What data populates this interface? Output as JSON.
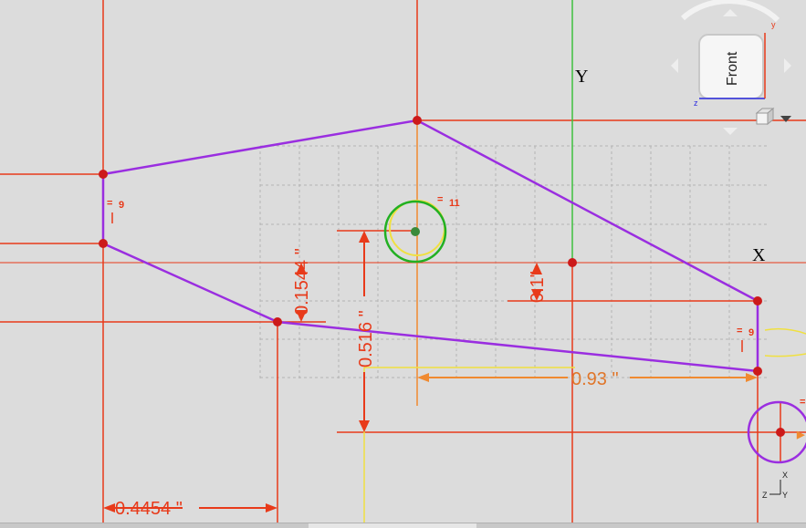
{
  "axes": {
    "x_label": "X",
    "y_label": "Y"
  },
  "dimensions": {
    "horizontal_093": "0.93 \"",
    "horizontal_04454": "0.4454 \"",
    "vertical_0516": "0.516 \"",
    "vertical_01544": "0.1544 \"",
    "vertical_01": "0.1\""
  },
  "constraints": {
    "equal_left": "9",
    "equal_right": "9",
    "equal_circle": "11"
  },
  "view_cube": {
    "face_label": "Front",
    "axis_z": "z",
    "axis_y": "y"
  },
  "mini_triad": {
    "x": "X",
    "y": "Y",
    "z": "Z"
  },
  "colors": {
    "background": "#dcdcdc",
    "construction_line": "#e83a1a",
    "sketch_profile": "#9a2ee0",
    "dimension": "#e0762a",
    "y_axis": "#3ec03e",
    "point": "#cc1a1a",
    "grid": "#b4b4b4",
    "highlight": "#f0e040"
  }
}
